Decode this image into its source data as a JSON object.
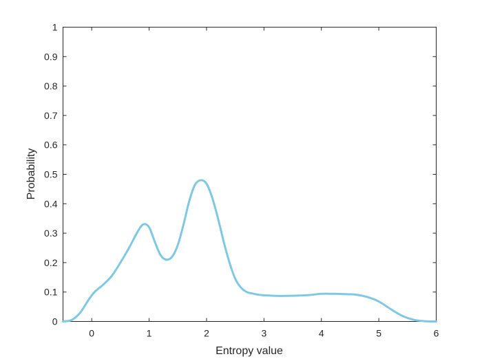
{
  "chart_data": {
    "type": "line",
    "xlabel": "Entropy value",
    "ylabel": "Probability",
    "xlim": [
      -0.5,
      6
    ],
    "ylim": [
      0,
      1
    ],
    "x_ticks": [
      0,
      1,
      2,
      3,
      4,
      5,
      6
    ],
    "x_tick_labels": [
      "0",
      "1",
      "2",
      "3",
      "4",
      "5",
      "6"
    ],
    "y_ticks": [
      0,
      0.1,
      0.2,
      0.3,
      0.4,
      0.5,
      0.6,
      0.7,
      0.8,
      0.9,
      1
    ],
    "y_tick_labels": [
      "0",
      "0.1",
      "0.2",
      "0.3",
      "0.4",
      "0.5",
      "0.6",
      "0.7",
      "0.8",
      "0.9",
      "1"
    ],
    "grid": false,
    "series": [
      {
        "color": "#7ec8e3",
        "x": [
          -0.5,
          -0.35,
          -0.2,
          -0.05,
          0.05,
          0.2,
          0.35,
          0.5,
          0.65,
          0.8,
          0.9,
          1.0,
          1.1,
          1.2,
          1.3,
          1.4,
          1.5,
          1.6,
          1.7,
          1.8,
          1.9,
          2.0,
          2.1,
          2.2,
          2.3,
          2.4,
          2.5,
          2.6,
          2.7,
          2.8,
          2.9,
          3.0,
          3.2,
          3.4,
          3.6,
          3.8,
          4.0,
          4.2,
          4.4,
          4.6,
          4.8,
          5.0,
          5.2,
          5.4,
          5.6,
          5.8,
          6.0
        ],
        "y": [
          0.0,
          0.005,
          0.03,
          0.075,
          0.1,
          0.125,
          0.155,
          0.2,
          0.25,
          0.305,
          0.33,
          0.32,
          0.27,
          0.225,
          0.21,
          0.22,
          0.26,
          0.33,
          0.41,
          0.465,
          0.48,
          0.468,
          0.42,
          0.35,
          0.27,
          0.2,
          0.145,
          0.115,
          0.1,
          0.095,
          0.091,
          0.089,
          0.087,
          0.087,
          0.088,
          0.09,
          0.094,
          0.094,
          0.093,
          0.091,
          0.083,
          0.068,
          0.043,
          0.02,
          0.006,
          0.001,
          0.0
        ]
      }
    ]
  }
}
